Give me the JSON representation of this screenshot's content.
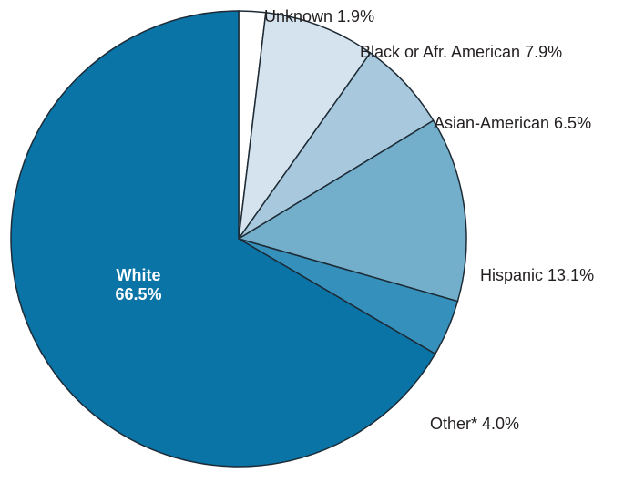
{
  "chart_data": {
    "type": "pie",
    "start_angle_deg": 0,
    "direction": "clockwise",
    "legend": "none",
    "slices": [
      {
        "label": "Unknown",
        "value": 1.9,
        "display": "1.9%",
        "color": "#ffffff"
      },
      {
        "label": "Black or Afr. American",
        "value": 7.9,
        "display": "7.9%",
        "color": "#d5e3ee"
      },
      {
        "label": "Asian-American",
        "value": 6.5,
        "display": "6.5%",
        "color": "#a7c8dd"
      },
      {
        "label": "Hispanic",
        "value": 13.1,
        "display": "13.1%",
        "color": "#73aecb"
      },
      {
        "label": "Other*",
        "value": 4.0,
        "display": "4.0%",
        "color": "#3590bc"
      },
      {
        "label": "White",
        "value": 66.5,
        "display": "66.5%",
        "color": "#0a74a6",
        "label_inside": true
      }
    ]
  }
}
